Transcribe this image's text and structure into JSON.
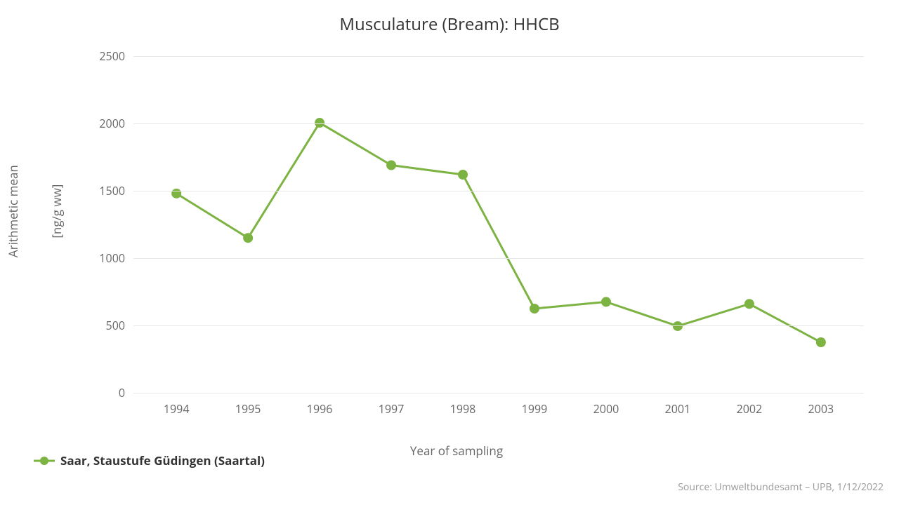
{
  "chart": {
    "type": "line",
    "title": "Musculature (Bream): HHCB",
    "xlabel": "Year of sampling",
    "ylabel_line1": "Arithmetic mean",
    "ylabel_line2": "[ng/g ww]",
    "x_values": [
      1994,
      1995,
      1996,
      1997,
      1998,
      1999,
      2000,
      2001,
      2002,
      2003
    ],
    "y_values": [
      1480,
      1150,
      2005,
      1690,
      1620,
      625,
      675,
      495,
      660,
      375
    ],
    "xlim": [
      1993.4,
      2003.6
    ],
    "ylim": [
      0,
      2500
    ],
    "ytick_step": 500,
    "y_ticks": [
      0,
      500,
      1000,
      1500,
      2000,
      2500
    ],
    "background_color": "#ffffff",
    "grid_color": "#e6e6e6",
    "axis_text_color": "#666666",
    "title_color": "#333333",
    "title_fontsize": 24,
    "label_fontsize": 17,
    "tick_fontsize": 16,
    "series": {
      "name": "Saar, Staustufe Güdingen (Saartal)",
      "line_color": "#7cb342",
      "marker_color": "#7cb342",
      "line_width": 3,
      "marker_radius": 7,
      "marker_style": "circle"
    },
    "legend_position": "bottom-left"
  },
  "source_text": "Source: Umweltbundesamt – UPB, 1/12/2022"
}
